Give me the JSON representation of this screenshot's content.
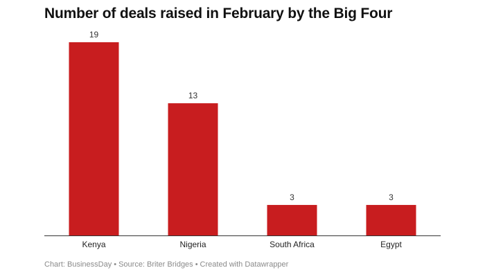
{
  "chart_data": {
    "type": "bar",
    "title": "Number of deals raised in February by the Big Four",
    "categories": [
      "Kenya",
      "Nigeria",
      "South Africa",
      "Egypt"
    ],
    "values": [
      19,
      13,
      3,
      3
    ],
    "data_labels": [
      "19",
      "13",
      "3",
      "3"
    ],
    "xlabel": "",
    "ylabel": "",
    "ylim": [
      0,
      19
    ],
    "grid": false,
    "legend": "none",
    "bar_color": "#c81d1f",
    "axis_color": "#333333"
  },
  "footer": {
    "chart_credit": "Chart: BusinessDay",
    "source": "Source: Briter Bridges",
    "created_with": "Created with Datawrapper",
    "separator": "•"
  }
}
